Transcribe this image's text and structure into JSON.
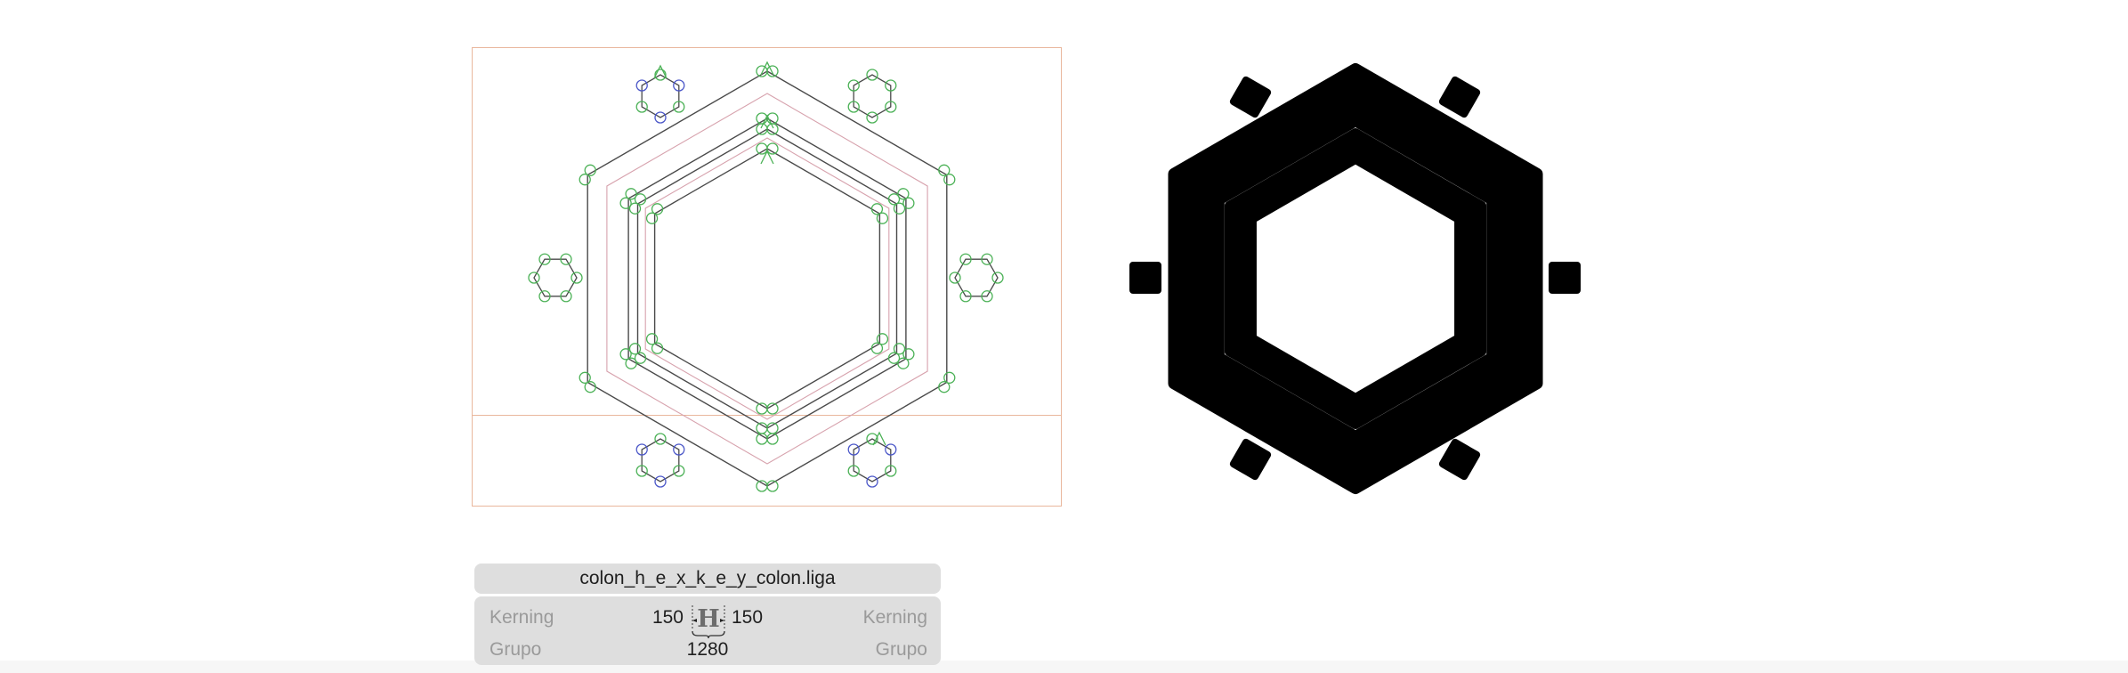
{
  "glyph": {
    "name": "colon_h_e_x_k_e_y_colon.liga"
  },
  "metrics": {
    "left_kerning_label": "Kerning",
    "right_kerning_label": "Kerning",
    "left_group_label": "Grupo",
    "right_group_label": "Grupo",
    "lsb": "150",
    "rsb": "150",
    "width": "1280"
  },
  "icons": {
    "metrics_icon": "glyph-h-sidebearing-icon"
  },
  "colors": {
    "frame": "#e9b79d",
    "guide": "#d7a2ad",
    "outline": "#4a4a4a",
    "node_green": "#4bb156",
    "node_blue": "#4b57c8",
    "preview_fill": "#000000",
    "panel_bg": "#dedede"
  }
}
